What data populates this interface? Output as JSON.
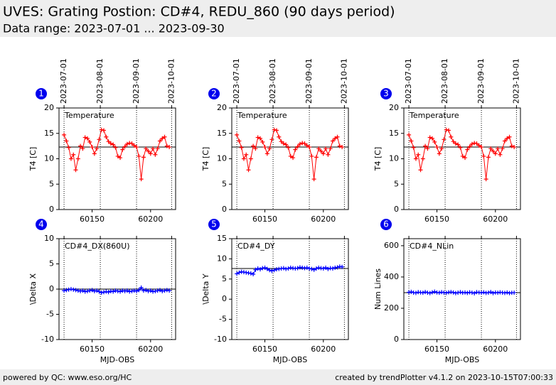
{
  "header": {
    "title": "UVES: Grating Postion: CD#4, REDU_860 (90 days period)",
    "subtitle": "Data range: 2023-07-01 ... 2023-09-30"
  },
  "footer": {
    "left": "powered by QC: www.eso.org/HC",
    "right": "created by trendPlotter v4.1.2 on 2023-10-15T07:00:33"
  },
  "chart_data": [
    {
      "type": "line",
      "badge": "1",
      "label": "Temperature",
      "ylabel": "T4 [C]",
      "color": "#ff0000",
      "x": [
        60126,
        60128,
        60130,
        60132,
        60134,
        60136,
        60138,
        60140,
        60142,
        60144,
        60146,
        60148,
        60150,
        60152,
        60154,
        60156,
        60158,
        60160,
        60162,
        60164,
        60166,
        60168,
        60170,
        60172,
        60174,
        60176,
        60178,
        60180,
        60182,
        60184,
        60186,
        60188,
        60190,
        60192,
        60194,
        60196,
        60198,
        60200,
        60202,
        60204,
        60206,
        60208,
        60210,
        60212,
        60214,
        60216
      ],
      "values": [
        14.7,
        13.5,
        12.2,
        10,
        10.8,
        7.8,
        10,
        12.5,
        12,
        14.2,
        14,
        13.3,
        12.3,
        11,
        12,
        13.8,
        15.7,
        15.6,
        14.3,
        13.4,
        13,
        12.8,
        12.2,
        10.5,
        10.2,
        11.8,
        12.4,
        12.9,
        13.1,
        13,
        12.6,
        12.3,
        10.5,
        6,
        10.3,
        12,
        11.5,
        11,
        12,
        10.8,
        12,
        13.5,
        14,
        14.3,
        12.5,
        12.3
      ],
      "xlim": [
        60121.7,
        60221.4
      ],
      "ylim": [
        0,
        20
      ],
      "xticks": [
        60150,
        60200
      ],
      "yticks": [
        0,
        5,
        10,
        15,
        20
      ],
      "reference_line": 12.3,
      "x2ticks": [
        {
          "value": 60126,
          "label": "2023-07-01"
        },
        {
          "value": 60157,
          "label": "2023-08-01"
        },
        {
          "value": 60188,
          "label": "2023-09-01"
        },
        {
          "value": 60218,
          "label": "2023-10-01"
        }
      ]
    },
    {
      "type": "line",
      "badge": "2",
      "label": "Temperature",
      "ylabel": "T4 [C]",
      "color": "#ff0000",
      "x": [
        60126,
        60128,
        60130,
        60132,
        60134,
        60136,
        60138,
        60140,
        60142,
        60144,
        60146,
        60148,
        60150,
        60152,
        60154,
        60156,
        60158,
        60160,
        60162,
        60164,
        60166,
        60168,
        60170,
        60172,
        60174,
        60176,
        60178,
        60180,
        60182,
        60184,
        60186,
        60188,
        60190,
        60192,
        60194,
        60196,
        60198,
        60200,
        60202,
        60204,
        60206,
        60208,
        60210,
        60212,
        60214,
        60216
      ],
      "values": [
        14.7,
        13.5,
        12.2,
        10,
        10.8,
        7.8,
        10,
        12.5,
        12,
        14.2,
        14,
        13.3,
        12.3,
        11,
        12,
        13.8,
        15.7,
        15.6,
        14.3,
        13.4,
        13,
        12.8,
        12.2,
        10.5,
        10.2,
        11.8,
        12.4,
        12.9,
        13.1,
        13,
        12.6,
        12.3,
        10.5,
        6,
        10.3,
        12,
        11.5,
        11,
        12,
        10.8,
        12,
        13.5,
        14,
        14.3,
        12.5,
        12.3
      ],
      "xlim": [
        60121.7,
        60221.4
      ],
      "ylim": [
        0,
        20
      ],
      "xticks": [
        60150,
        60200
      ],
      "yticks": [
        0,
        5,
        10,
        15,
        20
      ],
      "reference_line": 12.3,
      "x2ticks": [
        {
          "value": 60126,
          "label": "2023-07-01"
        },
        {
          "value": 60157,
          "label": "2023-08-01"
        },
        {
          "value": 60188,
          "label": "2023-09-01"
        },
        {
          "value": 60218,
          "label": "2023-10-01"
        }
      ]
    },
    {
      "type": "line",
      "badge": "3",
      "label": "Temperature",
      "ylabel": "T4 [C]",
      "color": "#ff0000",
      "x": [
        60126,
        60128,
        60130,
        60132,
        60134,
        60136,
        60138,
        60140,
        60142,
        60144,
        60146,
        60148,
        60150,
        60152,
        60154,
        60156,
        60158,
        60160,
        60162,
        60164,
        60166,
        60168,
        60170,
        60172,
        60174,
        60176,
        60178,
        60180,
        60182,
        60184,
        60186,
        60188,
        60190,
        60192,
        60194,
        60196,
        60198,
        60200,
        60202,
        60204,
        60206,
        60208,
        60210,
        60212,
        60214,
        60216
      ],
      "values": [
        14.7,
        13.5,
        12.2,
        10,
        10.8,
        7.8,
        10,
        12.5,
        12,
        14.2,
        14,
        13.3,
        12.3,
        11,
        12,
        13.8,
        15.7,
        15.6,
        14.3,
        13.4,
        13,
        12.8,
        12.2,
        10.5,
        10.2,
        11.8,
        12.4,
        12.9,
        13.1,
        13,
        12.6,
        12.3,
        10.5,
        6,
        10.3,
        12,
        11.5,
        11,
        12,
        10.8,
        12,
        13.5,
        14,
        14.3,
        12.5,
        12.3
      ],
      "xlim": [
        60121.7,
        60221.4
      ],
      "ylim": [
        0,
        20
      ],
      "xticks": [
        60150,
        60200
      ],
      "yticks": [
        0,
        5,
        10,
        15,
        20
      ],
      "reference_line": 12.3,
      "x2ticks": [
        {
          "value": 60126,
          "label": "2023-07-01"
        },
        {
          "value": 60157,
          "label": "2023-08-01"
        },
        {
          "value": 60188,
          "label": "2023-09-01"
        },
        {
          "value": 60218,
          "label": "2023-10-01"
        }
      ]
    },
    {
      "type": "line",
      "badge": "4",
      "label": "CD#4_DX(860U)",
      "ylabel": "\\Delta X",
      "xlabel": "MJD-OBS",
      "color": "#0000ff",
      "x": [
        60126,
        60128,
        60130,
        60132,
        60134,
        60136,
        60138,
        60140,
        60142,
        60144,
        60146,
        60148,
        60150,
        60152,
        60154,
        60156,
        60158,
        60160,
        60162,
        60164,
        60166,
        60168,
        60170,
        60172,
        60174,
        60176,
        60178,
        60180,
        60182,
        60184,
        60186,
        60188,
        60190,
        60192,
        60194,
        60196,
        60198,
        60200,
        60202,
        60204,
        60206,
        60208,
        60210,
        60212,
        60214,
        60216
      ],
      "values": [
        -0.3,
        -0.2,
        -0.1,
        0,
        -0.1,
        -0.2,
        -0.3,
        -0.4,
        -0.3,
        -0.5,
        -0.4,
        -0.3,
        -0.2,
        -0.4,
        -0.3,
        -0.5,
        -0.7,
        -0.6,
        -0.5,
        -0.6,
        -0.4,
        -0.5,
        -0.3,
        -0.4,
        -0.5,
        -0.3,
        -0.4,
        -0.3,
        -0.5,
        -0.4,
        -0.3,
        -0.4,
        -0.2,
        0.3,
        -0.3,
        -0.2,
        -0.4,
        -0.3,
        -0.5,
        -0.4,
        -0.3,
        -0.2,
        -0.4,
        -0.3,
        -0.2,
        -0.3
      ],
      "xlim": [
        60121.7,
        60221.4
      ],
      "ylim": [
        -10,
        10
      ],
      "xticks": [
        60150,
        60200
      ],
      "yticks": [
        -10,
        -5,
        0,
        5,
        10
      ],
      "reference_line": 0,
      "vlines": [
        60126,
        60157,
        60188,
        60218
      ]
    },
    {
      "type": "line",
      "badge": "5",
      "label": "CD#4_DY",
      "ylabel": "\\Delta Y",
      "xlabel": "MJD-OBS",
      "color": "#0000ff",
      "x": [
        60126,
        60128,
        60130,
        60132,
        60134,
        60136,
        60138,
        60140,
        60142,
        60144,
        60146,
        60148,
        60150,
        60152,
        60154,
        60156,
        60158,
        60160,
        60162,
        60164,
        60166,
        60168,
        60170,
        60172,
        60174,
        60176,
        60178,
        60180,
        60182,
        60184,
        60186,
        60188,
        60190,
        60192,
        60194,
        60196,
        60198,
        60200,
        60202,
        60204,
        60206,
        60208,
        60210,
        60212,
        60214,
        60216
      ],
      "values": [
        6.3,
        6.6,
        6.8,
        6.7,
        6.6,
        6.5,
        6.4,
        6.2,
        7.3,
        7.6,
        7.4,
        7.7,
        7.8,
        7.5,
        7.2,
        7.0,
        7.2,
        7.4,
        7.5,
        7.6,
        7.7,
        7.5,
        7.6,
        7.8,
        7.7,
        7.6,
        7.7,
        7.9,
        7.8,
        7.7,
        7.8,
        7.6,
        7.5,
        7.3,
        7.6,
        7.8,
        7.7,
        7.6,
        7.8,
        7.5,
        7.7,
        7.6,
        7.8,
        7.9,
        8.1,
        8.0
      ],
      "xlim": [
        60121.7,
        60221.4
      ],
      "ylim": [
        -10,
        15
      ],
      "xticks": [
        60150,
        60200
      ],
      "yticks": [
        -10,
        -5,
        0,
        5,
        10,
        15
      ],
      "reference_line": 7.6,
      "vlines": [
        60126,
        60157,
        60188,
        60218
      ]
    },
    {
      "type": "line",
      "badge": "6",
      "label": "CD#4_NLin",
      "ylabel": "Num Lines",
      "xlabel": "MJD-OBS",
      "color": "#0000ff",
      "x": [
        60126,
        60128,
        60130,
        60132,
        60134,
        60136,
        60138,
        60140,
        60142,
        60144,
        60146,
        60148,
        60150,
        60152,
        60154,
        60156,
        60158,
        60160,
        60162,
        60164,
        60166,
        60168,
        60170,
        60172,
        60174,
        60176,
        60178,
        60180,
        60182,
        60184,
        60186,
        60188,
        60190,
        60192,
        60194,
        60196,
        60198,
        60200,
        60202,
        60204,
        60206,
        60208,
        60210,
        60212,
        60214,
        60216
      ],
      "values": [
        302,
        305,
        300,
        298,
        303,
        301,
        299,
        304,
        300,
        297,
        302,
        306,
        301,
        299,
        303,
        300,
        298,
        302,
        304,
        301,
        297,
        300,
        303,
        299,
        301,
        298,
        302,
        300,
        296,
        303,
        301,
        299,
        302,
        298,
        300,
        304,
        297,
        301,
        299,
        302,
        300,
        298,
        301,
        297,
        299,
        300
      ],
      "xlim": [
        60121.7,
        60221.4
      ],
      "ylim": [
        0,
        645
      ],
      "xticks": [
        60150,
        60200
      ],
      "yticks": [
        0,
        200,
        400,
        600
      ],
      "reference_line": 300,
      "vlines": [
        60126,
        60157,
        60188,
        60218
      ]
    }
  ]
}
